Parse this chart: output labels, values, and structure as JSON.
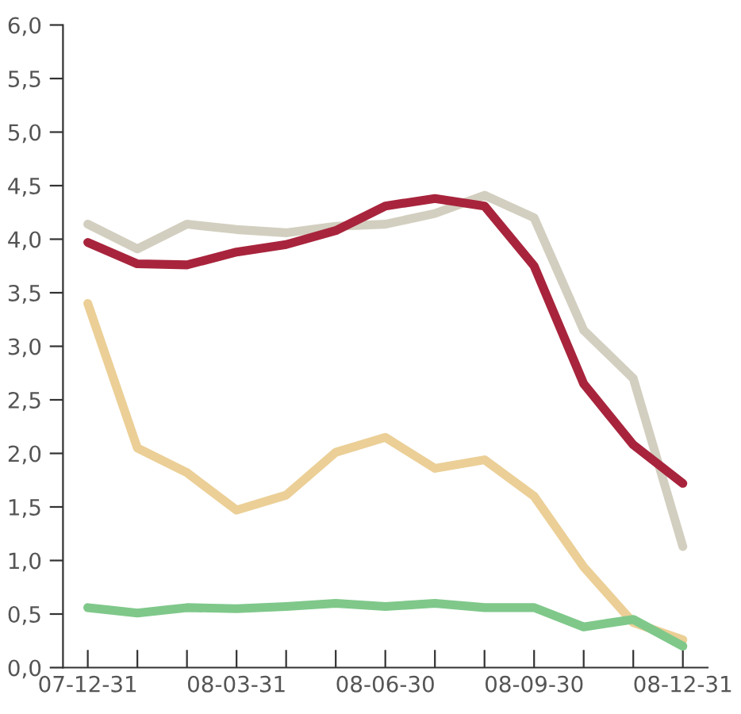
{
  "chart_data": {
    "type": "line",
    "categories": [
      "07-12-31",
      null,
      null,
      "08-03-31",
      null,
      null,
      "08-06-30",
      null,
      null,
      "08-09-30",
      null,
      null,
      "08-12-31"
    ],
    "series": [
      {
        "color": "#d3cfc0",
        "values": [
          4.14,
          3.91,
          4.14,
          4.09,
          4.06,
          4.12,
          4.14,
          4.24,
          4.41,
          4.2,
          3.15,
          2.7,
          1.13
        ]
      },
      {
        "color": "#a8243c",
        "values": [
          3.97,
          3.77,
          3.76,
          3.88,
          3.95,
          4.08,
          4.31,
          4.38,
          4.31,
          3.75,
          2.65,
          2.08,
          1.72
        ]
      },
      {
        "color": "#ebcf96",
        "values": [
          3.4,
          2.05,
          1.82,
          1.47,
          1.61,
          2.01,
          2.15,
          1.86,
          1.94,
          1.6,
          0.94,
          0.42,
          0.26
        ]
      },
      {
        "color": "#7fc88a",
        "values": [
          0.56,
          0.51,
          0.56,
          0.55,
          0.57,
          0.6,
          0.57,
          0.6,
          0.56,
          0.56,
          0.38,
          0.45,
          0.2
        ]
      }
    ],
    "ylim": [
      0,
      6
    ],
    "yticks": [
      {
        "value": 0,
        "label": "0,0"
      },
      {
        "value": 0.5,
        "label": "0,5"
      },
      {
        "value": 1,
        "label": "1,0"
      },
      {
        "value": 1.5,
        "label": "1,5"
      },
      {
        "value": 2,
        "label": "2,0"
      },
      {
        "value": 2.5,
        "label": "2,5"
      },
      {
        "value": 3,
        "label": "3,0"
      },
      {
        "value": 3.5,
        "label": "3,5"
      },
      {
        "value": 4,
        "label": "4,0"
      },
      {
        "value": 4.5,
        "label": "4,5"
      },
      {
        "value": 5,
        "label": "5,0"
      },
      {
        "value": 5.5,
        "label": "5,5"
      },
      {
        "value": 6,
        "label": "6,0"
      }
    ],
    "grid": false,
    "marker": "none",
    "line_style": "solid"
  }
}
